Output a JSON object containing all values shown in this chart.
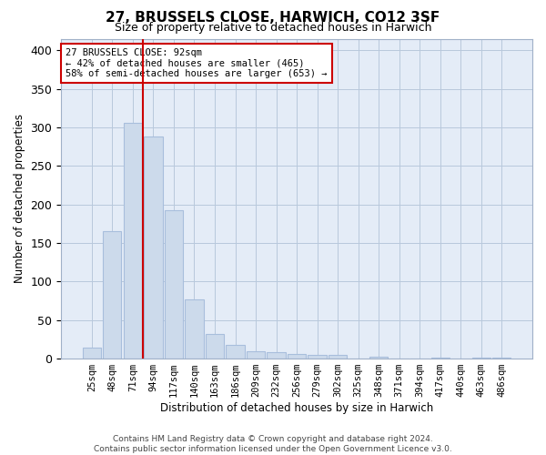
{
  "title": "27, BRUSSELS CLOSE, HARWICH, CO12 3SF",
  "subtitle": "Size of property relative to detached houses in Harwich",
  "xlabel": "Distribution of detached houses by size in Harwich",
  "ylabel": "Number of detached properties",
  "footer_line1": "Contains HM Land Registry data © Crown copyright and database right 2024.",
  "footer_line2": "Contains public sector information licensed under the Open Government Licence v3.0.",
  "categories": [
    "25sqm",
    "48sqm",
    "71sqm",
    "94sqm",
    "117sqm",
    "140sqm",
    "163sqm",
    "186sqm",
    "209sqm",
    "232sqm",
    "256sqm",
    "279sqm",
    "302sqm",
    "325sqm",
    "348sqm",
    "371sqm",
    "394sqm",
    "417sqm",
    "440sqm",
    "463sqm",
    "486sqm"
  ],
  "values": [
    14,
    165,
    306,
    288,
    192,
    77,
    32,
    18,
    9,
    8,
    6,
    5,
    5,
    0,
    3,
    0,
    0,
    1,
    0,
    1,
    1
  ],
  "bar_color": "#ccdaeb",
  "bar_edgecolor": "#a8bedc",
  "grid_color": "#b8c8dc",
  "bg_color": "#e4ecf7",
  "vline_x": 2.5,
  "vline_color": "#cc0000",
  "annotation_text": "27 BRUSSELS CLOSE: 92sqm\n← 42% of detached houses are smaller (465)\n58% of semi-detached houses are larger (653) →",
  "annotation_box_edgecolor": "#cc0000",
  "ylim": [
    0,
    415
  ],
  "yticks": [
    0,
    50,
    100,
    150,
    200,
    250,
    300,
    350,
    400
  ],
  "title_fontsize": 11,
  "subtitle_fontsize": 9
}
